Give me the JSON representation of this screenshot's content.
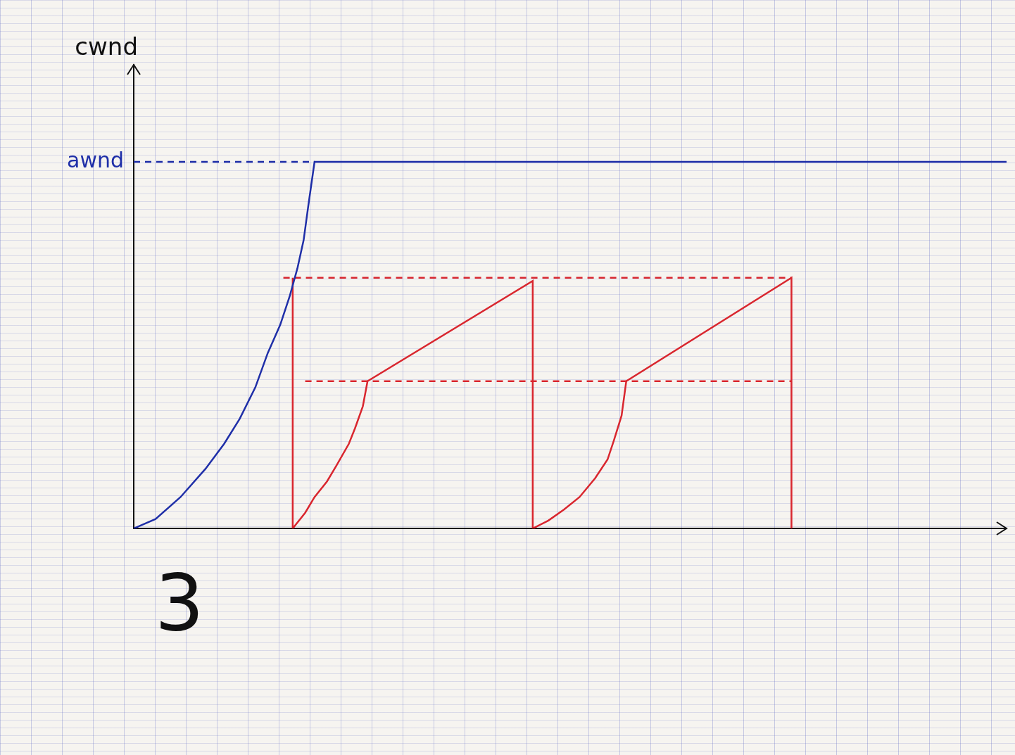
{
  "chart_data": {
    "type": "line",
    "ylabel": "cwnd",
    "annotations": [
      {
        "text": "awnd",
        "y": 11.7,
        "color": "#1f2fa8"
      },
      {
        "text": "3"
      }
    ],
    "xlim": [
      0,
      28
    ],
    "ylim": [
      0,
      14.8
    ],
    "tick_labels": false,
    "grid": false,
    "series": [
      {
        "color": "#1f2fa8",
        "line_style": "solid",
        "x": [
          0,
          0.7,
          1.5,
          2.3,
          2.9,
          3.4,
          3.9,
          4.3,
          4.7,
          5.0,
          5.25,
          5.45,
          5.6,
          5.8,
          28
        ],
        "values": [
          0,
          0.3,
          1.0,
          1.9,
          2.7,
          3.5,
          4.5,
          5.6,
          6.5,
          7.4,
          8.3,
          9.2,
          10.3,
          11.7,
          11.7
        ]
      },
      {
        "color": "#1f2fa8",
        "line_style": "dashed",
        "x": [
          0,
          5.8
        ],
        "values": [
          11.7,
          11.7
        ]
      },
      {
        "color": "#d9262e",
        "line_style": "solid",
        "x": [
          5.1,
          5.1,
          5.5,
          5.8,
          6.2,
          6.5,
          6.9,
          7.1,
          7.35,
          7.5,
          12.8,
          12.8,
          13.3,
          13.8,
          14.3,
          14.8,
          15.2,
          15.4,
          15.65,
          15.8,
          21.1,
          21.1
        ],
        "values": [
          8.0,
          0,
          0.5,
          1.0,
          1.5,
          2.0,
          2.7,
          3.2,
          3.9,
          4.7,
          7.9,
          0,
          0.25,
          0.6,
          1.0,
          1.6,
          2.2,
          2.8,
          3.6,
          4.7,
          8.0,
          0
        ]
      },
      {
        "color": "#d9262e",
        "line_style": "dashed",
        "x": [
          4.8,
          21.1
        ],
        "values": [
          8.0,
          8.0
        ]
      },
      {
        "color": "#d9262e",
        "line_style": "dashed",
        "x": [
          5.5,
          21.1
        ],
        "values": [
          4.7,
          4.7
        ]
      }
    ]
  }
}
